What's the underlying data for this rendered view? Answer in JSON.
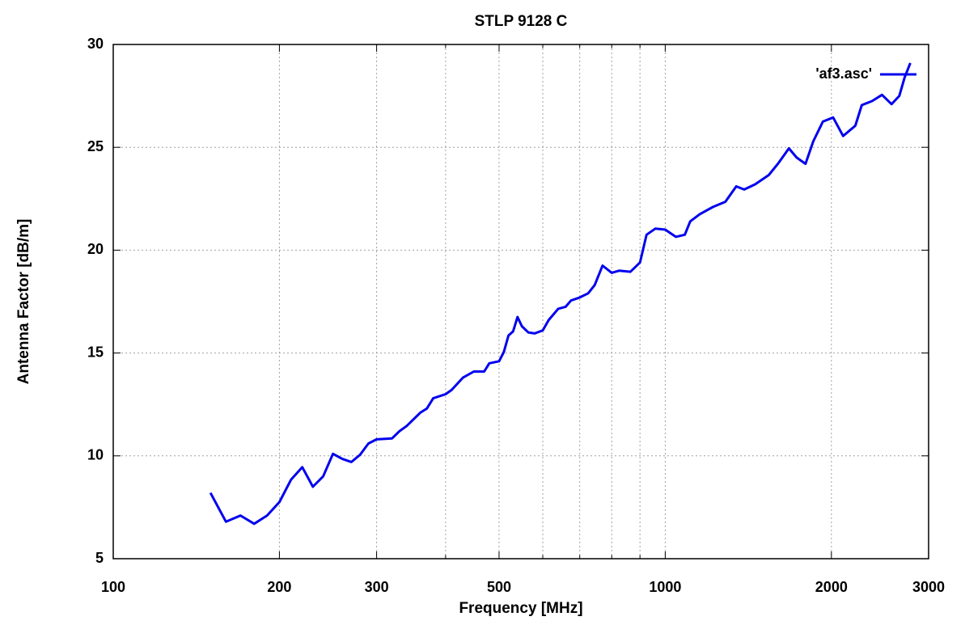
{
  "chart_data": {
    "type": "line",
    "title": "STLP 9128 C",
    "x_label": "Frequency [MHz]",
    "y_label": "Antenna Factor [dB/m]",
    "x_scale": "log",
    "grid": true,
    "legend": "top-right",
    "xlim": [
      100,
      3000
    ],
    "ylim": [
      5,
      30
    ],
    "xticks": [
      100,
      200,
      300,
      500,
      1000,
      2000,
      3000
    ],
    "xminor": [
      400,
      600,
      700,
      800,
      900
    ],
    "yticks": [
      5,
      10,
      15,
      20,
      25,
      30
    ],
    "x": [
      150,
      160,
      170,
      180,
      190,
      200,
      210,
      220,
      230,
      240,
      250,
      260,
      270,
      280,
      290,
      300,
      320,
      330,
      340,
      360,
      370,
      380,
      400,
      410,
      430,
      450,
      470,
      480,
      500,
      510,
      520,
      530,
      540,
      550,
      565,
      580,
      600,
      615,
      640,
      660,
      675,
      700,
      725,
      745,
      770,
      800,
      825,
      865,
      900,
      925,
      960,
      1000,
      1045,
      1085,
      1110,
      1155,
      1220,
      1285,
      1345,
      1390,
      1455,
      1540,
      1600,
      1675,
      1730,
      1795,
      1855,
      1930,
      2015,
      2100,
      2210,
      2270,
      2370,
      2470,
      2570,
      2655,
      2715,
      2780
    ],
    "series": [
      {
        "name": "'af3.asc'",
        "color": "#0000ee",
        "values": [
          8.2,
          6.8,
          7.1,
          6.7,
          7.1,
          7.75,
          8.85,
          9.45,
          8.5,
          9.0,
          10.1,
          9.85,
          9.7,
          10.05,
          10.6,
          10.8,
          10.85,
          11.2,
          11.45,
          12.1,
          12.3,
          12.8,
          13.0,
          13.2,
          13.8,
          14.1,
          14.1,
          14.5,
          14.6,
          15.05,
          15.85,
          16.05,
          16.75,
          16.3,
          16.0,
          15.95,
          16.1,
          16.6,
          17.15,
          17.25,
          17.55,
          17.7,
          17.9,
          18.3,
          19.25,
          18.9,
          19.0,
          18.95,
          19.4,
          20.75,
          21.05,
          21.0,
          20.65,
          20.75,
          21.4,
          21.75,
          22.1,
          22.35,
          23.1,
          22.95,
          23.2,
          23.65,
          24.2,
          24.95,
          24.5,
          24.2,
          25.3,
          26.25,
          26.45,
          25.55,
          26.05,
          27.05,
          27.25,
          27.55,
          27.1,
          27.5,
          28.4,
          29.1
        ]
      }
    ]
  }
}
